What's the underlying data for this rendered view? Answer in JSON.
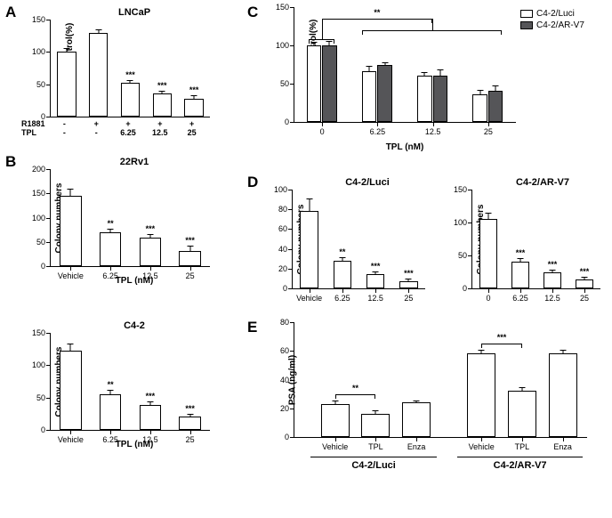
{
  "colors": {
    "white": "#ffffff",
    "dark": "#555558",
    "black": "#000000"
  },
  "panelA": {
    "label": "A",
    "title": "LNCaP",
    "ylabel": "Viability of control(%)",
    "ylim": [
      0,
      150
    ],
    "ytick_step": 50,
    "categories_R1881": [
      "-",
      "+",
      "+",
      "+",
      "+"
    ],
    "categories_TPL": [
      "-",
      "-",
      "6.25",
      "12.5",
      "25"
    ],
    "row1": "R1881",
    "row2": "TPL",
    "values": [
      100,
      130,
      52,
      36,
      28
    ],
    "errors": [
      4,
      3,
      3,
      3,
      3
    ],
    "sig": [
      "",
      "",
      "***",
      "***",
      "***"
    ],
    "bar_color": "#ffffff"
  },
  "panelB_22Rv1": {
    "label": "B",
    "title": "22Rv1",
    "ylabel": "Colony numbers",
    "ylim": [
      0,
      200
    ],
    "ytick_step": 50,
    "categories": [
      "Vehicle",
      "6.25",
      "12.5",
      "25"
    ],
    "xaxis": "TPL (nM)",
    "values": [
      145,
      70,
      58,
      32
    ],
    "errors": [
      12,
      6,
      6,
      8
    ],
    "sig": [
      "",
      "**",
      "***",
      "***"
    ],
    "bar_color": "#ffffff"
  },
  "panelB_C42": {
    "title": "C4-2",
    "ylabel": "Colony numbers",
    "ylim": [
      0,
      150
    ],
    "ytick_step": 50,
    "categories": [
      "Vehicle",
      "6.25",
      "12.5",
      "25"
    ],
    "xaxis": "TPL (nM)",
    "values": [
      122,
      55,
      38,
      20
    ],
    "errors": [
      10,
      6,
      5,
      4
    ],
    "sig": [
      "",
      "**",
      "***",
      "***"
    ],
    "bar_color": "#ffffff"
  },
  "panelC": {
    "label": "C",
    "ylabel": "Viability of control(%)",
    "ylim": [
      0,
      150
    ],
    "ytick_step": 50,
    "xaxis": "TPL (nM)",
    "groups": [
      "0",
      "6.25",
      "12.5",
      "25"
    ],
    "series": [
      {
        "name": "C4-2/Luci",
        "color": "#ffffff",
        "values": [
          100,
          66,
          60,
          36
        ],
        "errors": [
          4,
          6,
          4,
          5
        ]
      },
      {
        "name": "C4-2/AR-V7",
        "color": "#555558",
        "values": [
          100,
          74,
          61,
          41
        ],
        "errors": [
          5,
          3,
          6,
          5
        ]
      }
    ],
    "sig_overall": "**"
  },
  "panelD_luci": {
    "label": "D",
    "title": "C4-2/Luci",
    "ylabel": "Colony numbers",
    "ylim": [
      0,
      100
    ],
    "yticks": [
      0,
      20,
      40,
      60,
      80,
      100
    ],
    "categories": [
      "Vehicle",
      "6.25",
      "12.5",
      "25"
    ],
    "values": [
      78,
      28,
      14,
      7
    ],
    "errors": [
      12,
      3,
      2,
      2
    ],
    "sig": [
      "",
      "**",
      "***",
      "***"
    ],
    "bar_color": "#ffffff"
  },
  "panelD_arv7": {
    "title": "C4-2/AR-V7",
    "ylabel": "Colony numbers",
    "ylim": [
      0,
      150
    ],
    "ytick_step": 50,
    "categories": [
      "0",
      "6.25",
      "12.5",
      "25"
    ],
    "values": [
      105,
      40,
      24,
      13
    ],
    "errors": [
      8,
      5,
      3,
      3
    ],
    "sig": [
      "",
      "***",
      "***",
      "***"
    ],
    "bar_color": "#ffffff"
  },
  "panelE": {
    "label": "E",
    "ylabel": "PSA (ng/ml)",
    "ylim": [
      0,
      80
    ],
    "ytick_step": 20,
    "groups": [
      "C4-2/Luci",
      "C4-2/AR-V7"
    ],
    "categories": [
      "Vehicle",
      "TPL",
      "Enza"
    ],
    "values": [
      [
        23,
        16,
        24
      ],
      [
        58,
        32,
        58
      ]
    ],
    "errors": [
      [
        2,
        2,
        1
      ],
      [
        2,
        2,
        2
      ]
    ],
    "sig": [
      "**",
      "***"
    ],
    "bar_color": "#ffffff"
  }
}
